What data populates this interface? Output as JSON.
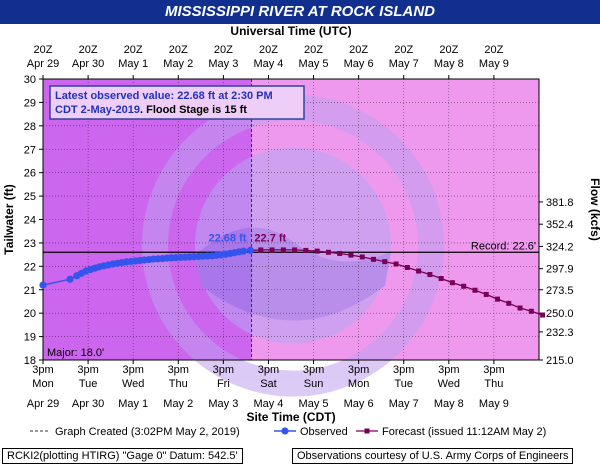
{
  "chart_data": {
    "type": "line",
    "title": "MISSISSIPPI RIVER AT ROCK ISLAND",
    "top_axis_title": "Universal Time (UTC)",
    "top_ticks": [
      {
        "time": "20Z",
        "date": "Apr 29"
      },
      {
        "time": "20Z",
        "date": "Apr 30"
      },
      {
        "time": "20Z",
        "date": "May 1"
      },
      {
        "time": "20Z",
        "date": "May 2"
      },
      {
        "time": "20Z",
        "date": "May 3"
      },
      {
        "time": "20Z",
        "date": "May 4"
      },
      {
        "time": "20Z",
        "date": "May 5"
      },
      {
        "time": "20Z",
        "date": "May 6"
      },
      {
        "time": "20Z",
        "date": "May 7"
      },
      {
        "time": "20Z",
        "date": "May 8"
      },
      {
        "time": "20Z",
        "date": "May 9"
      }
    ],
    "xlabel": "Site Time (CDT)",
    "x_range_days": [
      29,
      40
    ],
    "bottom_ticks": [
      {
        "time": "3pm",
        "day": "Mon",
        "date": "Apr 29"
      },
      {
        "time": "3pm",
        "day": "Tue",
        "date": "Apr 30"
      },
      {
        "time": "3pm",
        "day": "Wed",
        "date": "May 1"
      },
      {
        "time": "3pm",
        "day": "Thu",
        "date": "May 2"
      },
      {
        "time": "3pm",
        "day": "Fri",
        "date": "May 3"
      },
      {
        "time": "3pm",
        "day": "Sat",
        "date": "May 4"
      },
      {
        "time": "3pm",
        "day": "Sun",
        "date": "May 5"
      },
      {
        "time": "3pm",
        "day": "Mon",
        "date": "May 6"
      },
      {
        "time": "3pm",
        "day": "Tue",
        "date": "May 7"
      },
      {
        "time": "3pm",
        "day": "Wed",
        "date": "May 8"
      },
      {
        "time": "3pm",
        "day": "Thu",
        "date": "May 9"
      }
    ],
    "ylabel": "Tailwater (ft)",
    "ylim": [
      18,
      30
    ],
    "yticks": [
      "18",
      "19",
      "20",
      "21",
      "22",
      "23",
      "24",
      "25",
      "26",
      "27",
      "28",
      "29",
      "30"
    ],
    "y2label": "Flow (kcfs)",
    "y2_ticks": [
      {
        "label": "215.0",
        "stage": 18.0
      },
      {
        "label": "232.3",
        "stage": 19.2
      },
      {
        "label": "250.0",
        "stage": 20.0
      },
      {
        "label": "273.5",
        "stage": 21.0
      },
      {
        "label": "297.9",
        "stage": 21.9
      },
      {
        "label": "324.2",
        "stage": 22.85
      },
      {
        "label": "352.4",
        "stage": 23.8
      },
      {
        "label": "381.8",
        "stage": 24.75
      }
    ],
    "flood_stage": 15,
    "major_stage": {
      "value": 18.0,
      "label": "Major: 18.0'"
    },
    "record": {
      "value": 22.6,
      "label": "Record: 22.6'"
    },
    "graph_created_x": 33.625,
    "info_box": {
      "line1": "Latest observed value: 22.68 ft at 2:30 PM",
      "line2_prefix": "CDT 2-May-2019",
      "line2_suffix": ". Flood Stage is 15 ft"
    },
    "observed_label": "22.68 ft",
    "forecast_label": "22.7 ft",
    "series": [
      {
        "name": "Observed",
        "color": "#3355ee",
        "points": [
          [
            29.0,
            21.2
          ],
          [
            29.6,
            21.45
          ],
          [
            29.75,
            21.6
          ],
          [
            29.85,
            21.7
          ],
          [
            29.95,
            21.8
          ],
          [
            30.05,
            21.86
          ],
          [
            30.15,
            21.92
          ],
          [
            30.25,
            21.98
          ],
          [
            30.35,
            22.02
          ],
          [
            30.45,
            22.06
          ],
          [
            30.55,
            22.1
          ],
          [
            30.65,
            22.13
          ],
          [
            30.75,
            22.16
          ],
          [
            30.85,
            22.19
          ],
          [
            30.95,
            22.21
          ],
          [
            31.05,
            22.23
          ],
          [
            31.15,
            22.25
          ],
          [
            31.25,
            22.27
          ],
          [
            31.35,
            22.29
          ],
          [
            31.45,
            22.31
          ],
          [
            31.55,
            22.32
          ],
          [
            31.65,
            22.33
          ],
          [
            31.75,
            22.35
          ],
          [
            31.85,
            22.36
          ],
          [
            31.95,
            22.37
          ],
          [
            32.05,
            22.38
          ],
          [
            32.15,
            22.39
          ],
          [
            32.25,
            22.4
          ],
          [
            32.35,
            22.41
          ],
          [
            32.45,
            22.42
          ],
          [
            32.55,
            22.43
          ],
          [
            32.65,
            22.44
          ],
          [
            32.75,
            22.45
          ],
          [
            32.85,
            22.47
          ],
          [
            32.95,
            22.49
          ],
          [
            33.05,
            22.52
          ],
          [
            33.15,
            22.55
          ],
          [
            33.25,
            22.58
          ],
          [
            33.35,
            22.62
          ],
          [
            33.45,
            22.65
          ],
          [
            33.6,
            22.68
          ]
        ]
      },
      {
        "name": "Forecast (issued 11:12AM May 2)",
        "color": "#770055",
        "points": [
          [
            33.6,
            22.68
          ],
          [
            33.83,
            22.7
          ],
          [
            34.08,
            22.7
          ],
          [
            34.33,
            22.7
          ],
          [
            34.58,
            22.7
          ],
          [
            34.83,
            22.68
          ],
          [
            35.08,
            22.65
          ],
          [
            35.33,
            22.6
          ],
          [
            35.58,
            22.55
          ],
          [
            35.83,
            22.48
          ],
          [
            36.08,
            22.4
          ],
          [
            36.33,
            22.3
          ],
          [
            36.58,
            22.2
          ],
          [
            36.83,
            22.1
          ],
          [
            37.08,
            21.95
          ],
          [
            37.33,
            21.8
          ],
          [
            37.58,
            21.65
          ],
          [
            37.83,
            21.48
          ],
          [
            38.08,
            21.3
          ],
          [
            38.33,
            21.15
          ],
          [
            38.58,
            20.98
          ],
          [
            38.83,
            20.8
          ],
          [
            39.08,
            20.6
          ],
          [
            39.33,
            20.42
          ],
          [
            39.58,
            20.22
          ],
          [
            39.83,
            20.08
          ],
          [
            40.08,
            19.92
          ]
        ]
      }
    ],
    "legend": {
      "created": "Graph Created (3:02PM May 2, 2019)",
      "observed": "Observed",
      "forecast": "Forecast (issued 11:12AM May 2)"
    },
    "colors": {
      "title_bg": "#102f8f",
      "plot_light": "#ee99ee",
      "plot_dark": "#cc66ee",
      "observed": "#3355ee",
      "forecast": "#770055",
      "info_border": "#334499"
    }
  },
  "footer": {
    "left": "RCKI2(plotting HTIRG) \"Gage 0\" Datum: 542.5'",
    "right": "Observations courtesy of U.S. Army Corps of Engineers"
  }
}
